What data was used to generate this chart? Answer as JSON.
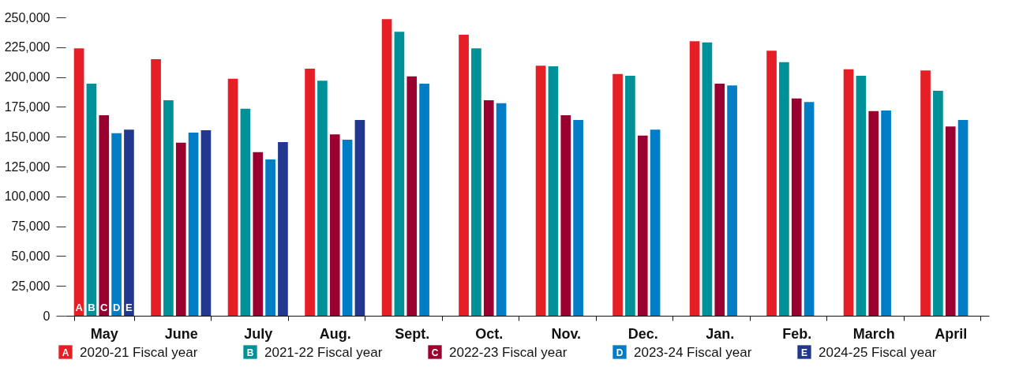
{
  "chart_data": {
    "type": "bar",
    "categories": [
      "May",
      "June",
      "July",
      "Aug.",
      "Sept.",
      "Oct.",
      "Nov.",
      "Dec.",
      "Jan.",
      "Feb.",
      "March",
      "April"
    ],
    "series": [
      {
        "name": "2020-21  Fiscal year",
        "color": "#e61e25",
        "values": [
          224000,
          215000,
          198500,
          207000,
          248500,
          235500,
          209500,
          202500,
          230000,
          222000,
          206500,
          205500
        ]
      },
      {
        "name": "2021-22 Fiscal year",
        "color": "#009098",
        "values": [
          194500,
          180500,
          173500,
          197000,
          238000,
          224000,
          209000,
          201000,
          229000,
          212500,
          201000,
          188500
        ]
      },
      {
        "name": "2022-23 Fiscal year",
        "color": "#990030",
        "values": [
          168000,
          145000,
          137000,
          152000,
          200500,
          180500,
          168000,
          151000,
          194500,
          182000,
          171500,
          158500
        ]
      },
      {
        "name": "2023-24 Fiscal year",
        "color": "#017dc5",
        "values": [
          153000,
          153500,
          131000,
          147500,
          194500,
          178000,
          164000,
          156000,
          193000,
          179000,
          172000,
          164000
        ]
      },
      {
        "name": "2024-25 Fiscal year",
        "color": "#223890",
        "values": [
          156000,
          155500,
          145500,
          164000,
          null,
          null,
          null,
          null,
          null,
          null,
          null,
          null
        ]
      }
    ],
    "annotations": [
      {
        "text": "A",
        "x": "May",
        "y": 0
      },
      {
        "text": "B",
        "x": "May",
        "y": 0
      },
      {
        "text": "C",
        "x": "May",
        "y": 0
      },
      {
        "text": "D",
        "x": "May",
        "y": 0
      },
      {
        "text": "E",
        "x": "May",
        "y": 0
      }
    ],
    "ylim": [
      0,
      250000
    ],
    "yticks": [
      0,
      {
        "value": 25000,
        "label": "25,000"
      },
      {
        "value": 50000,
        "label": "50,000"
      },
      {
        "value": 75000,
        "label": "75,000"
      },
      {
        "value": 100000,
        "label": "100,000"
      },
      {
        "value": 125000,
        "label": "125,000"
      },
      {
        "value": 150000,
        "label": "150,000"
      },
      {
        "value": 175000,
        "label": "175,000"
      },
      {
        "value": 200000,
        "label": "200,000"
      },
      {
        "value": 225000,
        "label": "225,000"
      },
      {
        "value": 250000,
        "label": "250,000"
      }
    ],
    "grid": false,
    "legend": "bottom"
  }
}
